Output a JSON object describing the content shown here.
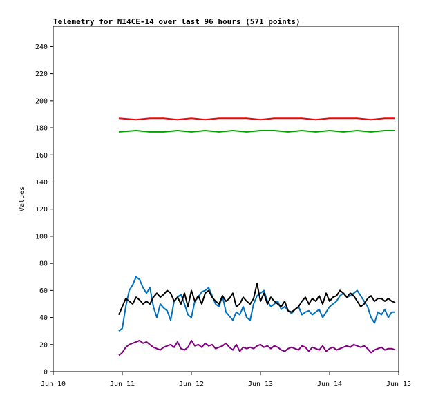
{
  "chart_data": {
    "type": "line",
    "title": "Telemetry for NI4CE-14 over last 96 hours (571 points)",
    "xlabel": "",
    "ylabel": "Values",
    "x_tick_labels": [
      "Jun 10",
      "Jun 11",
      "Jun 12",
      "Jun 13",
      "Jun 14",
      "Jun 15"
    ],
    "x_tick_positions_days": [
      10,
      11,
      12,
      13,
      14,
      15
    ],
    "xlim_days": [
      10,
      15
    ],
    "ylim": [
      0,
      255
    ],
    "y_ticks": [
      0,
      20,
      40,
      60,
      80,
      100,
      120,
      140,
      160,
      180,
      200,
      220,
      240
    ],
    "grid": false,
    "legend": "none",
    "series": [
      {
        "color": "#ff0000",
        "x_days": [
          10.95,
          11.2,
          11.4,
          11.6,
          11.8,
          12.0,
          12.2,
          12.4,
          12.6,
          12.8,
          13.0,
          13.2,
          13.4,
          13.6,
          13.8,
          14.0,
          14.2,
          14.4,
          14.6,
          14.8,
          14.95
        ],
        "values": [
          187,
          186,
          187,
          187,
          186,
          187,
          186,
          187,
          187,
          187,
          186,
          187,
          187,
          187,
          186,
          187,
          187,
          187,
          186,
          187,
          187
        ]
      },
      {
        "color": "#00a000",
        "x_days": [
          10.95,
          11.2,
          11.4,
          11.6,
          11.8,
          12.0,
          12.2,
          12.4,
          12.6,
          12.8,
          13.0,
          13.2,
          13.4,
          13.6,
          13.8,
          14.0,
          14.2,
          14.4,
          14.6,
          14.8,
          14.95
        ],
        "values": [
          177,
          178,
          177,
          177,
          178,
          177,
          178,
          177,
          178,
          177,
          178,
          178,
          177,
          178,
          177,
          178,
          177,
          178,
          177,
          178,
          178
        ]
      },
      {
        "color": "#0070c0",
        "x_days": [
          10.95,
          11.0,
          11.05,
          11.1,
          11.15,
          11.2,
          11.25,
          11.3,
          11.35,
          11.4,
          11.45,
          11.5,
          11.55,
          11.6,
          11.65,
          11.7,
          11.75,
          11.8,
          11.85,
          11.9,
          11.95,
          12.0,
          12.05,
          12.1,
          12.15,
          12.2,
          12.25,
          12.3,
          12.35,
          12.4,
          12.45,
          12.5,
          12.55,
          12.6,
          12.65,
          12.7,
          12.75,
          12.8,
          12.85,
          12.9,
          12.95,
          13.0,
          13.05,
          13.1,
          13.15,
          13.2,
          13.25,
          13.3,
          13.35,
          13.4,
          13.45,
          13.5,
          13.55,
          13.6,
          13.65,
          13.7,
          13.75,
          13.8,
          13.85,
          13.9,
          13.95,
          14.0,
          14.05,
          14.1,
          14.15,
          14.2,
          14.25,
          14.3,
          14.35,
          14.4,
          14.45,
          14.5,
          14.55,
          14.6,
          14.65,
          14.7,
          14.75,
          14.8,
          14.85,
          14.9,
          14.95
        ],
        "values": [
          30,
          32,
          48,
          60,
          64,
          70,
          68,
          62,
          58,
          62,
          48,
          40,
          50,
          47,
          45,
          38,
          52,
          55,
          57,
          50,
          42,
          40,
          52,
          55,
          59,
          60,
          62,
          56,
          50,
          48,
          56,
          44,
          41,
          38,
          44,
          42,
          48,
          40,
          38,
          50,
          56,
          58,
          60,
          52,
          48,
          50,
          52,
          46,
          48,
          45,
          43,
          46,
          48,
          42,
          44,
          45,
          42,
          44,
          46,
          40,
          44,
          48,
          50,
          52,
          56,
          58,
          55,
          56,
          58,
          60,
          56,
          52,
          48,
          40,
          36,
          44,
          42,
          46,
          40,
          44,
          44
        ]
      },
      {
        "color": "#000000",
        "x_days": [
          10.95,
          11.0,
          11.05,
          11.1,
          11.15,
          11.2,
          11.25,
          11.3,
          11.35,
          11.4,
          11.45,
          11.5,
          11.55,
          11.6,
          11.65,
          11.7,
          11.75,
          11.8,
          11.85,
          11.9,
          11.95,
          12.0,
          12.05,
          12.1,
          12.15,
          12.2,
          12.25,
          12.3,
          12.35,
          12.4,
          12.45,
          12.5,
          12.55,
          12.6,
          12.65,
          12.7,
          12.75,
          12.8,
          12.85,
          12.9,
          12.95,
          13.0,
          13.05,
          13.1,
          13.15,
          13.2,
          13.25,
          13.3,
          13.35,
          13.4,
          13.45,
          13.5,
          13.55,
          13.6,
          13.65,
          13.7,
          13.75,
          13.8,
          13.85,
          13.9,
          13.95,
          14.0,
          14.05,
          14.1,
          14.15,
          14.2,
          14.25,
          14.3,
          14.35,
          14.4,
          14.45,
          14.5,
          14.55,
          14.6,
          14.65,
          14.7,
          14.75,
          14.8,
          14.85,
          14.9,
          14.95
        ],
        "values": [
          42,
          48,
          54,
          52,
          50,
          55,
          53,
          50,
          52,
          50,
          55,
          58,
          55,
          57,
          60,
          58,
          52,
          55,
          50,
          58,
          48,
          60,
          52,
          56,
          50,
          58,
          60,
          55,
          52,
          50,
          56,
          52,
          54,
          58,
          48,
          50,
          55,
          52,
          50,
          54,
          65,
          52,
          58,
          50,
          55,
          52,
          50,
          48,
          52,
          45,
          44,
          46,
          48,
          52,
          55,
          50,
          54,
          52,
          56,
          50,
          58,
          52,
          55,
          56,
          60,
          58,
          55,
          58,
          56,
          52,
          48,
          50,
          54,
          56,
          52,
          54,
          54,
          52,
          54,
          52,
          51
        ]
      },
      {
        "color": "#800080",
        "x_days": [
          10.95,
          11.0,
          11.05,
          11.1,
          11.15,
          11.2,
          11.25,
          11.3,
          11.35,
          11.4,
          11.45,
          11.5,
          11.55,
          11.6,
          11.65,
          11.7,
          11.75,
          11.8,
          11.85,
          11.9,
          11.95,
          12.0,
          12.05,
          12.1,
          12.15,
          12.2,
          12.25,
          12.3,
          12.35,
          12.4,
          12.45,
          12.5,
          12.55,
          12.6,
          12.65,
          12.7,
          12.75,
          12.8,
          12.85,
          12.9,
          12.95,
          13.0,
          13.05,
          13.1,
          13.15,
          13.2,
          13.25,
          13.3,
          13.35,
          13.4,
          13.45,
          13.5,
          13.55,
          13.6,
          13.65,
          13.7,
          13.75,
          13.8,
          13.85,
          13.9,
          13.95,
          14.0,
          14.05,
          14.1,
          14.15,
          14.2,
          14.25,
          14.3,
          14.35,
          14.4,
          14.45,
          14.5,
          14.55,
          14.6,
          14.65,
          14.7,
          14.75,
          14.8,
          14.85,
          14.9,
          14.95
        ],
        "values": [
          12,
          14,
          18,
          20,
          21,
          22,
          23,
          21,
          22,
          20,
          18,
          17,
          16,
          18,
          19,
          20,
          18,
          22,
          17,
          16,
          18,
          23,
          19,
          20,
          18,
          21,
          19,
          20,
          17,
          18,
          19,
          21,
          18,
          16,
          20,
          15,
          18,
          17,
          18,
          17,
          19,
          20,
          18,
          19,
          17,
          19,
          18,
          16,
          15,
          17,
          18,
          17,
          16,
          19,
          18,
          15,
          18,
          17,
          16,
          19,
          15,
          17,
          18,
          16,
          17,
          18,
          19,
          18,
          20,
          19,
          18,
          19,
          17,
          14,
          16,
          17,
          18,
          16,
          17,
          17,
          16
        ]
      }
    ]
  }
}
